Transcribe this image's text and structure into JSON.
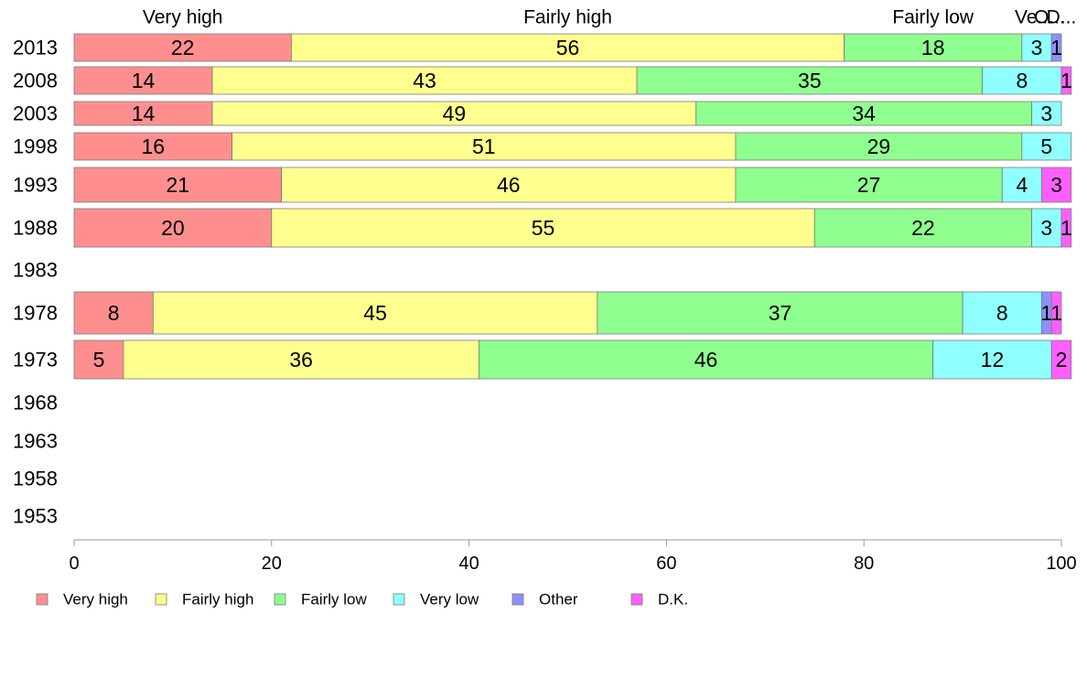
{
  "chart_data": {
    "type": "bar",
    "orientation": "horizontal",
    "stacked": true,
    "title": "",
    "xlabel": "",
    "ylabel": "",
    "xlim": [
      0,
      100
    ],
    "x_ticks": [
      0,
      20,
      40,
      60,
      80,
      100
    ],
    "grid": false,
    "legend_position": "bottom",
    "top_column_labels": [
      "Very high",
      "Fairly high",
      "Fairly low",
      "Ve...",
      "O...",
      "D..."
    ],
    "categories": [
      "2013",
      "2008",
      "2003",
      "1998",
      "1993",
      "1988",
      "1983",
      "1978",
      "1973",
      "1968",
      "1963",
      "1958",
      "1953"
    ],
    "series": [
      {
        "name": "Very high",
        "color": "#ff8f8f",
        "values": [
          22,
          14,
          14,
          16,
          21,
          20,
          null,
          8,
          5,
          null,
          null,
          null,
          null
        ]
      },
      {
        "name": "Fairly high",
        "color": "#ffff8f",
        "values": [
          56,
          43,
          49,
          51,
          46,
          55,
          null,
          45,
          36,
          null,
          null,
          null,
          null
        ]
      },
      {
        "name": "Fairly low",
        "color": "#8fff8f",
        "values": [
          18,
          35,
          34,
          29,
          27,
          22,
          null,
          37,
          46,
          null,
          null,
          null,
          null
        ]
      },
      {
        "name": "Very low",
        "color": "#8fffff",
        "values": [
          3,
          8,
          3,
          5,
          4,
          3,
          null,
          8,
          12,
          null,
          null,
          null,
          null
        ]
      },
      {
        "name": "Other",
        "color": "#8f8fff",
        "values": [
          1,
          0,
          0,
          0,
          0,
          0,
          null,
          1,
          0,
          null,
          null,
          null,
          null
        ]
      },
      {
        "name": "D.K.",
        "color": "#ff5fff",
        "values": [
          0,
          1,
          0,
          0,
          3,
          1,
          null,
          1,
          2,
          null,
          null,
          null,
          null
        ]
      }
    ]
  }
}
